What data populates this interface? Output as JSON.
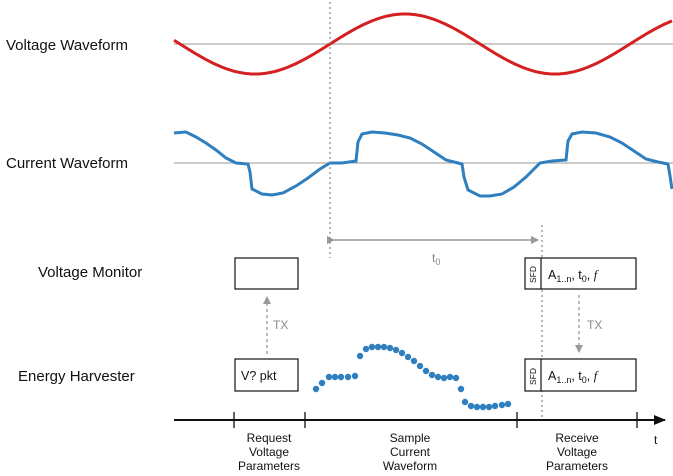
{
  "rows": {
    "voltage_waveform": "Voltage Waveform",
    "current_waveform": "Current Waveform",
    "voltage_monitor": "Voltage Monitor",
    "energy_harvester": "Energy Harvester"
  },
  "t0_label": "t",
  "t0_sub": "0",
  "tx_label": "TX",
  "boxes": {
    "pkt": "V? pkt",
    "sfd": "SFD",
    "a_main": "A",
    "a_sub": "1..n",
    "sep1": ", t",
    "t_sub": "0",
    "sep2": ", ",
    "f": "f"
  },
  "timeline": {
    "t_label": "t",
    "phases": [
      [
        "Request",
        "Voltage",
        "Parameters"
      ],
      [
        "Sample",
        "Current",
        "Waveform"
      ],
      [
        "Receive",
        "Voltage",
        "Parameters"
      ]
    ]
  },
  "colors": {
    "voltage": "#d42020",
    "current": "#2f7fbf",
    "guide": "#888888"
  }
}
